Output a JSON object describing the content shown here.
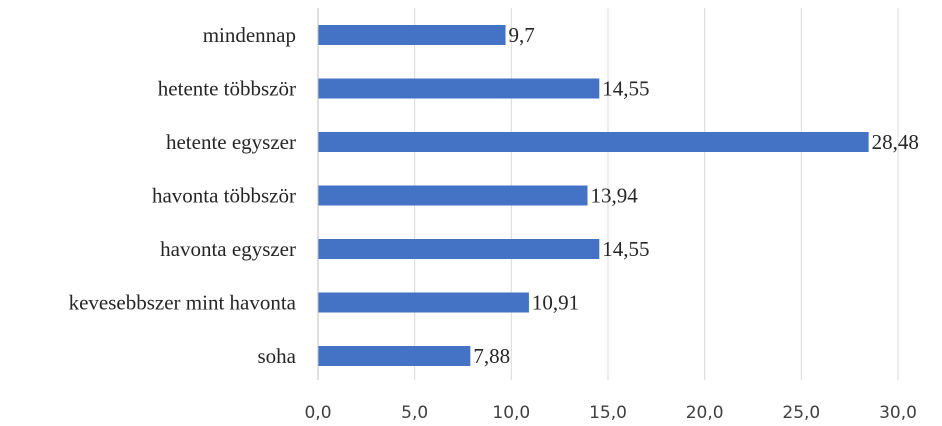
{
  "chart_data": {
    "type": "bar",
    "orientation": "horizontal",
    "categories": [
      "mindennap",
      "hetente többször",
      "hetente egyszer",
      "havonta többször",
      "havonta egyszer",
      "kevesebbszer mint havonta",
      "soha"
    ],
    "values": [
      9.7,
      14.55,
      28.48,
      13.94,
      14.55,
      10.91,
      7.88
    ],
    "value_labels": [
      "9,7",
      "14,55",
      "28,48",
      "13,94",
      "14,55",
      "10,91",
      "7,88"
    ],
    "xlim": [
      0,
      30
    ],
    "x_ticks": [
      0,
      5,
      10,
      15,
      20,
      25,
      30
    ],
    "x_tick_labels": [
      "0,0",
      "5,0",
      "10,0",
      "15,0",
      "20,0",
      "25,0",
      "30,0"
    ],
    "grid": true,
    "legend": "none",
    "bar_color": "#4472c4"
  }
}
